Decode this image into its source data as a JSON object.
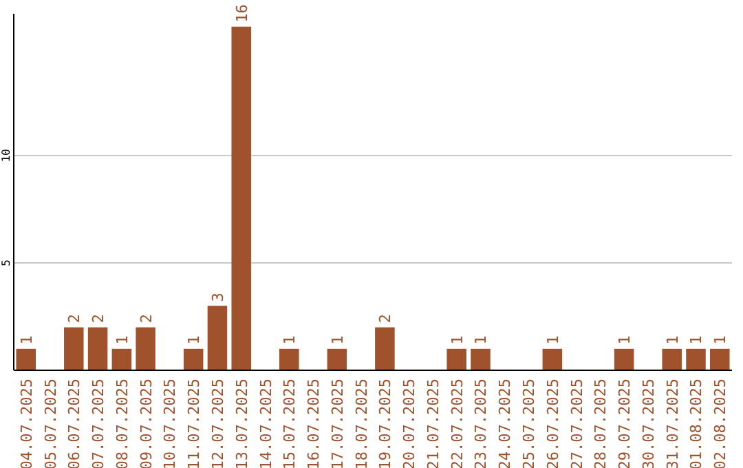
{
  "chart_data": {
    "type": "bar",
    "categories": [
      "04.07.2025",
      "05.07.2025",
      "06.07.2025",
      "07.07.2025",
      "08.07.2025",
      "09.07.2025",
      "10.07.2025",
      "11.07.2025",
      "12.07.2025",
      "13.07.2025",
      "14.07.2025",
      "15.07.2025",
      "16.07.2025",
      "17.07.2025",
      "18.07.2025",
      "19.07.2025",
      "20.07.2025",
      "21.07.2025",
      "22.07.2025",
      "23.07.2025",
      "24.07.2025",
      "25.07.2025",
      "26.07.2025",
      "27.07.2025",
      "28.07.2025",
      "29.07.2025",
      "30.07.2025",
      "31.07.2025",
      "01.08.2025",
      "02.08.2025"
    ],
    "values": [
      1,
      null,
      2,
      2,
      1,
      2,
      null,
      1,
      3,
      16,
      null,
      1,
      null,
      1,
      null,
      2,
      null,
      null,
      1,
      1,
      null,
      null,
      1,
      null,
      null,
      1,
      null,
      1,
      1,
      1
    ],
    "color": "#a0522d",
    "ylim": [
      0,
      16.6
    ],
    "yticks": [
      5,
      10
    ],
    "grid": "y",
    "data_labels": true
  }
}
